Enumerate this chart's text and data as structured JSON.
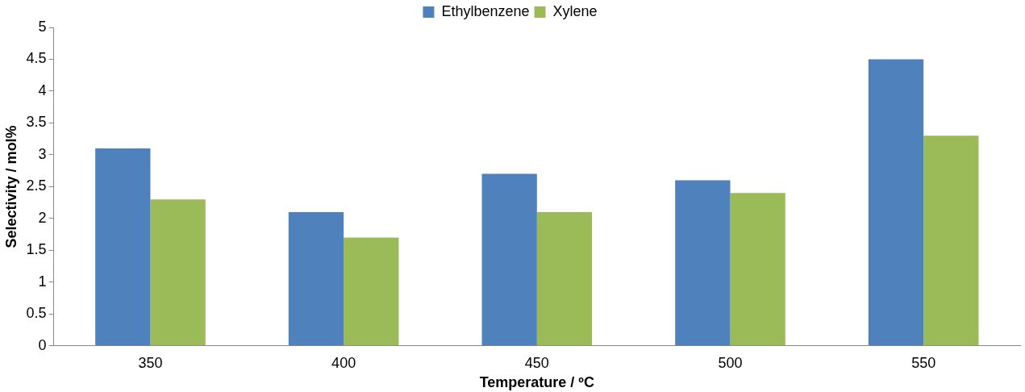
{
  "chart_data": {
    "type": "bar",
    "xlabel": "Temperature / ºC",
    "ylabel": "Selectivity / mol%",
    "categories": [
      "350",
      "400",
      "450",
      "500",
      "550"
    ],
    "series": [
      {
        "name": "Ethylbenzene",
        "color": "#4f81bd",
        "values": [
          3.1,
          2.1,
          2.7,
          2.6,
          4.5
        ]
      },
      {
        "name": "Xylene",
        "color": "#9bbb59",
        "values": [
          2.3,
          1.7,
          2.1,
          2.4,
          3.3
        ]
      }
    ],
    "ylim": [
      0,
      5
    ],
    "yticks": [
      0,
      0.5,
      1,
      1.5,
      2,
      2.5,
      3,
      3.5,
      4,
      4.5,
      5
    ],
    "grid": false,
    "legend": "top"
  }
}
